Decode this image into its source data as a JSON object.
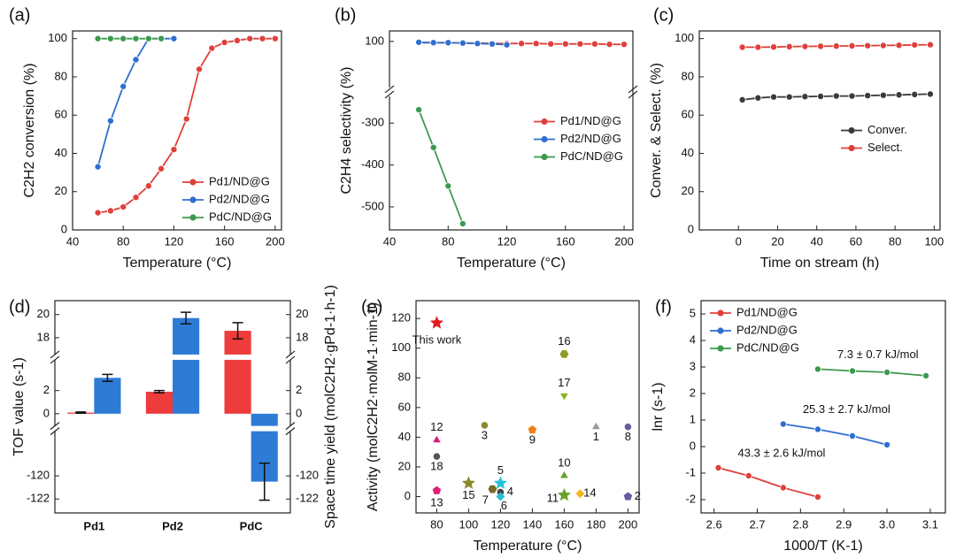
{
  "chart_data": [
    {
      "label": "(a)",
      "type": "line",
      "xlabel": "Temperature (°C)",
      "ylabel": "C2H2 conversion (%)",
      "xlim": [
        40,
        205
      ],
      "xticks": [
        40,
        80,
        120,
        160,
        200
      ],
      "ylim": [
        0,
        104
      ],
      "yticks": [
        0,
        20,
        40,
        60,
        80,
        100
      ],
      "legend": "lower right",
      "series": [
        {
          "name": "Pd1/ND@G",
          "color": "#e0403b",
          "x": [
            60,
            70,
            80,
            90,
            100,
            110,
            120,
            130,
            140,
            150,
            160,
            170,
            180,
            190,
            200
          ],
          "values": [
            9,
            10,
            12,
            17,
            23,
            32,
            42,
            58,
            84,
            95,
            98,
            99,
            100,
            100,
            100
          ]
        },
        {
          "name": "Pd2/ND@G",
          "color": "#2f6fd0",
          "x": [
            60,
            70,
            80,
            90,
            100,
            110,
            120
          ],
          "values": [
            33,
            57,
            75,
            89,
            100,
            100,
            100
          ]
        },
        {
          "name": "PdC/ND@G",
          "color": "#3c9a4f",
          "x": [
            60,
            70,
            80,
            90,
            100,
            110
          ],
          "values": [
            100,
            100,
            100,
            100,
            100,
            100
          ]
        }
      ]
    },
    {
      "label": "(b)",
      "type": "line",
      "xlabel": "Temperature (°C)",
      "ylabel": "C2H4 selectivity (%)",
      "xlim": [
        40,
        206
      ],
      "xticks": [
        40,
        80,
        120,
        160,
        200
      ],
      "ylim": [
        -555,
        125
      ],
      "ybreaks": [
        [
          -236,
          -10
        ]
      ],
      "yticks": [
        -500,
        -400,
        -300,
        100
      ],
      "legend": "center right",
      "series": [
        {
          "name": "Pd1/ND@G",
          "color": "#e0403b",
          "x": [
            60,
            70,
            80,
            90,
            100,
            110,
            120,
            130,
            140,
            150,
            160,
            170,
            180,
            190,
            200
          ],
          "values": [
            97,
            97,
            97,
            96,
            96,
            95,
            95,
            95,
            95,
            94,
            94,
            94,
            94,
            93,
            93
          ]
        },
        {
          "name": "Pd2/ND@G",
          "color": "#2f6fd0",
          "x": [
            60,
            70,
            80,
            90,
            100,
            110,
            120
          ],
          "values": [
            98,
            97,
            97,
            96,
            95,
            94,
            92
          ]
        },
        {
          "name": "PdC/ND@G",
          "color": "#3c9a4f",
          "x": [
            60,
            70,
            80,
            90
          ],
          "values": [
            -268,
            -358,
            -450,
            -540
          ]
        }
      ]
    },
    {
      "label": "(c)",
      "type": "line",
      "xlabel": "Time on stream (h)",
      "ylabel": "Conver. & Select. (%)",
      "xlim": [
        -20,
        103
      ],
      "xticks": [
        0,
        20,
        40,
        60,
        80,
        100
      ],
      "ylim": [
        0,
        104
      ],
      "yticks": [
        0,
        20,
        40,
        60,
        80,
        100
      ],
      "legend": "center right",
      "series": [
        {
          "name": "Conver.",
          "color": "#3a3a3a",
          "x": [
            2,
            10,
            18,
            26,
            34,
            42,
            50,
            58,
            66,
            74,
            82,
            90,
            98
          ],
          "values": [
            68,
            69,
            69.5,
            69.5,
            69.7,
            69.8,
            70,
            70,
            70.2,
            70.4,
            70.6,
            70.8,
            71
          ]
        },
        {
          "name": "Select.",
          "color": "#e0403b",
          "x": [
            2,
            10,
            18,
            26,
            34,
            42,
            50,
            58,
            66,
            74,
            82,
            90,
            98
          ],
          "values": [
            95.5,
            95.5,
            95.6,
            95.8,
            95.9,
            96,
            96.1,
            96.2,
            96.3,
            96.4,
            96.5,
            96.7,
            96.8
          ]
        }
      ]
    },
    {
      "label": "(d)",
      "type": "bar",
      "ylabel": "TOF value (s-1)",
      "y2label": "Space time yield (molC2H2·gPd-1·h-1)",
      "categories": [
        "Pd1",
        "Pd2",
        "PdC"
      ],
      "ylim": [
        -123.2,
        21.2
      ],
      "y2lim": [
        -123.2,
        21.2
      ],
      "ybreaks": [
        [
          -116.3,
          -0.9
        ],
        [
          4.5,
          16.7
        ]
      ],
      "yticks": [
        -122,
        -120,
        0,
        2,
        18,
        20
      ],
      "y2ticks": [
        -122,
        -120,
        0,
        2,
        18,
        20
      ],
      "series": [
        {
          "name": "TOF value",
          "color": "#ee3b3b",
          "values": [
            0.1,
            1.9,
            18.6
          ],
          "errors": [
            0.05,
            0.1,
            0.7
          ]
        },
        {
          "name": "Space time yield",
          "color": "#2e7bd6",
          "axis": "y2",
          "values": [
            3.1,
            19.7,
            -120.5
          ],
          "errors": [
            0.3,
            0.5,
            1.6
          ]
        }
      ]
    },
    {
      "label": "(e)",
      "type": "scatter",
      "xlabel": "Temperature (°C)",
      "ylabel": "Activity (molC2H2·molM-1·min-1)",
      "xlim": [
        67,
        207
      ],
      "xticks": [
        80,
        100,
        120,
        140,
        160,
        180,
        200
      ],
      "ylim": [
        -11,
        132
      ],
      "yticks": [
        0,
        20,
        40,
        60,
        80,
        100,
        120
      ],
      "series": [
        {
          "name": "This work",
          "color": "#e31a1c",
          "marker": "star",
          "x": [
            80
          ],
          "values": [
            117
          ]
        },
        {
          "name": "16",
          "color": "#8f9a2a",
          "marker": "hexagon",
          "x": [
            160
          ],
          "values": [
            96
          ]
        },
        {
          "name": "17",
          "color": "#8ab51f",
          "marker": "triangle-down",
          "x": [
            160
          ],
          "values": [
            68
          ]
        },
        {
          "name": "12",
          "color": "#d81b7a",
          "marker": "triangle",
          "x": [
            80
          ],
          "values": [
            38
          ]
        },
        {
          "name": "3",
          "color": "#8a8a2a",
          "marker": "circle",
          "x": [
            110
          ],
          "values": [
            48
          ]
        },
        {
          "name": "9",
          "color": "#f07f1a",
          "marker": "pentagon",
          "x": [
            140
          ],
          "values": [
            45
          ]
        },
        {
          "name": "1",
          "color": "#999999",
          "marker": "triangle",
          "x": [
            180
          ],
          "values": [
            47
          ]
        },
        {
          "name": "8",
          "color": "#6a5a9a",
          "marker": "circle",
          "x": [
            200
          ],
          "values": [
            47
          ]
        },
        {
          "name": "18",
          "color": "#555555",
          "marker": "circle",
          "x": [
            80
          ],
          "values": [
            27
          ]
        },
        {
          "name": "10",
          "color": "#6aa02a",
          "marker": "triangle",
          "x": [
            160
          ],
          "values": [
            14
          ]
        },
        {
          "name": "5",
          "color": "#22c3d6",
          "marker": "star",
          "x": [
            120
          ],
          "values": [
            9
          ]
        },
        {
          "name": "15",
          "color": "#8a8a2a",
          "marker": "star",
          "x": [
            100
          ],
          "values": [
            9
          ]
        },
        {
          "name": "7",
          "color": "#7a6a2a",
          "marker": "hexagon",
          "x": [
            115
          ],
          "values": [
            5
          ]
        },
        {
          "name": "4",
          "color": "#444444",
          "marker": "circle",
          "x": [
            120
          ],
          "values": [
            3
          ]
        },
        {
          "name": "6",
          "color": "#22c3d6",
          "marker": "diamond",
          "x": [
            120
          ],
          "values": [
            0
          ]
        },
        {
          "name": "13",
          "color": "#e0207a",
          "marker": "pentagon",
          "x": [
            80
          ],
          "values": [
            4
          ]
        },
        {
          "name": "11",
          "color": "#6aa02a",
          "marker": "star",
          "x": [
            160
          ],
          "values": [
            1
          ]
        },
        {
          "name": "14",
          "color": "#f2b51a",
          "marker": "diamond",
          "x": [
            170
          ],
          "values": [
            2
          ]
        },
        {
          "name": "2",
          "color": "#6a5aa0",
          "marker": "pentagon",
          "x": [
            200
          ],
          "values": [
            0
          ]
        }
      ]
    },
    {
      "label": "(f)",
      "type": "line",
      "xlabel": "1000/T (K-1)",
      "ylabel": "lnr (s-1)",
      "xlim": [
        2.57,
        3.135
      ],
      "xticks": [
        2.6,
        2.7,
        2.8,
        2.9,
        {
          "value": 3,
          "label": "3.0"
        },
        3.1
      ],
      "ylim": [
        -2.5,
        5.5
      ],
      "yticks": [
        -2,
        -1,
        0,
        1,
        2,
        3,
        4,
        5
      ],
      "legend": "upper left",
      "series": [
        {
          "name": "Pd1/ND@G",
          "color": "#e0403b",
          "x": [
            2.61,
            2.68,
            2.76,
            2.84
          ],
          "values": [
            -0.8,
            -1.1,
            -1.55,
            -1.9
          ],
          "annotation": "43.3 ± 2.6 kJ/mol"
        },
        {
          "name": "Pd2/ND@G",
          "color": "#2f6fd0",
          "x": [
            2.76,
            2.84,
            2.92,
            3.0
          ],
          "values": [
            0.85,
            0.65,
            0.4,
            0.07
          ],
          "annotation": "25.3 ± 2.7 kJ/mol"
        },
        {
          "name": "PdC/ND@G",
          "color": "#3c9a4f",
          "x": [
            2.84,
            2.92,
            3.0,
            3.09
          ],
          "values": [
            2.92,
            2.85,
            2.8,
            2.67
          ],
          "annotation": "7.3 ± 0.7 kJ/mol"
        }
      ]
    }
  ]
}
